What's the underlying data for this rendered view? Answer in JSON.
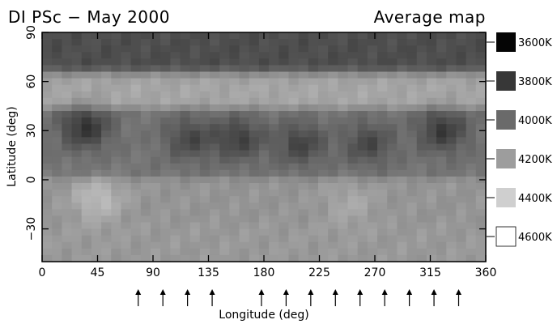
{
  "chart_data": {
    "type": "heatmap",
    "title": "DI PSc − May 2000",
    "subtitle": "Average map",
    "xlabel": "Longitude (deg)",
    "ylabel": "Latitude (deg)",
    "xlim": [
      0,
      360
    ],
    "ylim": [
      -50,
      90
    ],
    "x_ticks": [
      0,
      45,
      90,
      135,
      180,
      225,
      270,
      315,
      360
    ],
    "x_tick_labels": [
      "0",
      "45",
      "90",
      "135",
      "180",
      "225",
      "270",
      "315",
      "360"
    ],
    "y_ticks": [
      90,
      60,
      30,
      0,
      -30
    ],
    "y_tick_labels": [
      "90",
      "60",
      "30",
      "0",
      "−30"
    ],
    "grid": false,
    "legend_placement": "right",
    "colorbar": {
      "levels": [
        {
          "label": "3600K",
          "temperature": 3600,
          "color": "#050505"
        },
        {
          "label": "3800K",
          "temperature": 3800,
          "color": "#373737"
        },
        {
          "label": "4000K",
          "temperature": 4000,
          "color": "#6a6a6a"
        },
        {
          "label": "4200K",
          "temperature": 4200,
          "color": "#9d9d9d"
        },
        {
          "label": "4400K",
          "temperature": 4400,
          "color": "#cfcfcf"
        },
        {
          "label": "4600K",
          "temperature": 4600,
          "color": "#ffffff"
        }
      ]
    },
    "background_temperature": 4200,
    "features": [
      {
        "name": "polar-cap",
        "lon_range": [
          0,
          360
        ],
        "lat_range": [
          70,
          90
        ],
        "temperature": 3650
      },
      {
        "name": "bright-latitude-band",
        "lon_range": [
          0,
          360
        ],
        "lat_range": [
          47,
          58
        ],
        "temperature": 4330
      },
      {
        "name": "spot-lon-35",
        "lon": 35,
        "lat": 32,
        "temperature": 3700
      },
      {
        "name": "spot-lon-120",
        "lon": 120,
        "lat": 25,
        "temperature": 3850
      },
      {
        "name": "spot-lon-160",
        "lon": 160,
        "lat": 25,
        "temperature": 3800
      },
      {
        "name": "spot-lon-210",
        "lon": 210,
        "lat": 22,
        "temperature": 3820
      },
      {
        "name": "spot-lon-265",
        "lon": 265,
        "lat": 22,
        "temperature": 3850
      },
      {
        "name": "spot-lon-325",
        "lon": 325,
        "lat": 30,
        "temperature": 3750
      },
      {
        "name": "mid-latitude-dark-band",
        "lon_range": [
          0,
          360
        ],
        "lat_range": [
          5,
          40
        ],
        "temperature": 3950
      },
      {
        "name": "bright-region-lon-45",
        "lon": 45,
        "lat": -12,
        "temperature": 4500
      },
      {
        "name": "bright-region-lon-250",
        "lon": 250,
        "lat": -15,
        "temperature": 4350
      },
      {
        "name": "low-latitude-zone",
        "lon_range": [
          0,
          360
        ],
        "lat_range": [
          -50,
          -30
        ],
        "temperature": 4230
      }
    ],
    "observation_longitudes": [
      78,
      98,
      118,
      138,
      178,
      198,
      218,
      238,
      258,
      278,
      298,
      318,
      338
    ]
  }
}
